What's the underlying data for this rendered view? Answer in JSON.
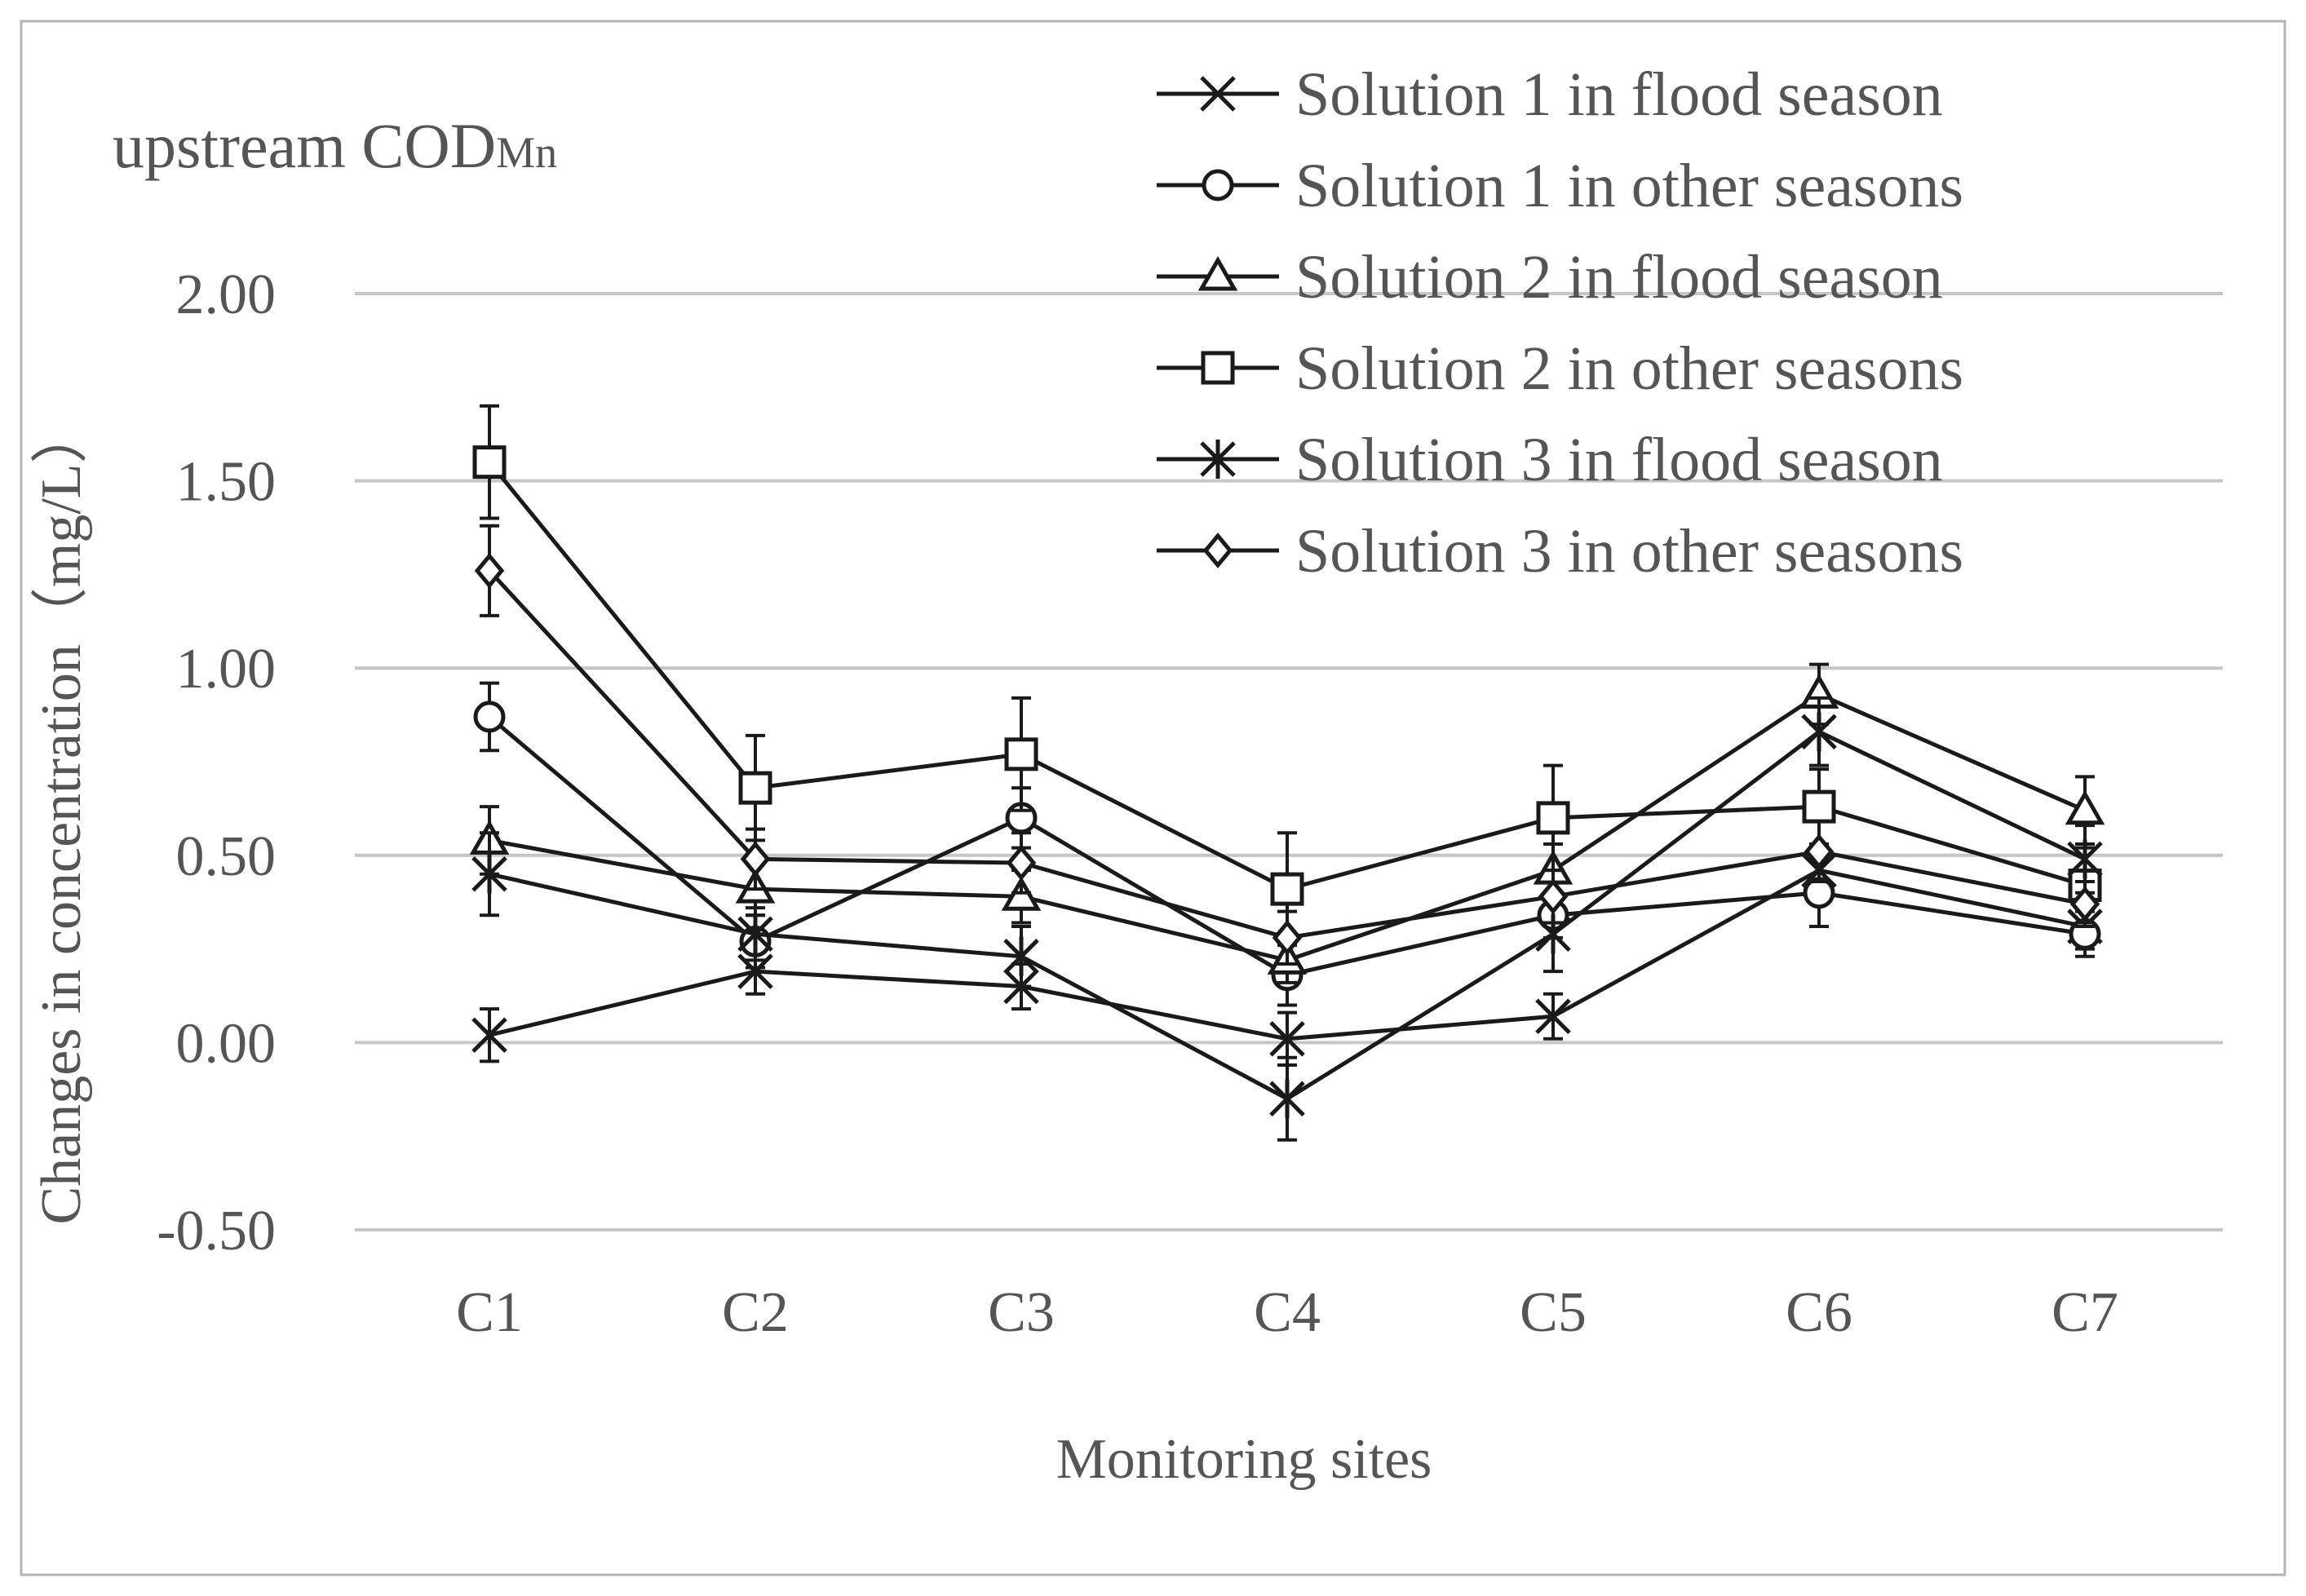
{
  "chart_data": {
    "type": "line",
    "title": "upstream COD",
    "title_subscript": "Mn",
    "xlabel": "Monitoring sites",
    "ylabel": "Changes in concentration（mg/L）",
    "categories": [
      "C1",
      "C2",
      "C3",
      "C4",
      "C5",
      "C6",
      "C7"
    ],
    "ylim": [
      -0.5,
      2.0
    ],
    "yticks": [
      -0.5,
      0.0,
      0.5,
      1.0,
      1.5,
      2.0
    ],
    "ytick_labels": [
      "-0.50",
      "0.00",
      "0.50",
      "1.00",
      "1.50",
      "2.00"
    ],
    "grid": true,
    "legend_position": "top-right",
    "series": [
      {
        "name": "Solution 1 in flood season",
        "marker": "x",
        "values": [
          0.02,
          0.19,
          0.15,
          0.01,
          0.07,
          0.46,
          0.31
        ],
        "errors": [
          0.07,
          0.06,
          0.06,
          0.07,
          0.06,
          0.06,
          0.06
        ]
      },
      {
        "name": "Solution 1 in other seasons",
        "marker": "circle",
        "values": [
          0.87,
          0.27,
          0.6,
          0.18,
          0.34,
          0.4,
          0.29
        ],
        "errors": [
          0.09,
          0.07,
          0.08,
          0.08,
          0.06,
          0.09,
          0.06
        ]
      },
      {
        "name": "Solution 2 in flood season",
        "marker": "triangle",
        "values": [
          0.54,
          0.41,
          0.39,
          0.22,
          0.46,
          0.93,
          0.62
        ],
        "errors": [
          0.09,
          0.07,
          0.07,
          0.06,
          0.07,
          0.08,
          0.09
        ]
      },
      {
        "name": "Solution 2 in other seasons",
        "marker": "square",
        "values": [
          1.55,
          0.68,
          0.77,
          0.41,
          0.6,
          0.63,
          0.42
        ],
        "errors": [
          0.15,
          0.14,
          0.15,
          0.15,
          0.14,
          0.1,
          0.1
        ]
      },
      {
        "name": "Solution 3 in flood season",
        "marker": "asterisk",
        "values": [
          0.45,
          0.29,
          0.23,
          -0.15,
          0.29,
          0.83,
          0.49
        ],
        "errors": [
          0.11,
          0.07,
          0.08,
          0.11,
          0.1,
          0.09,
          0.09
        ]
      },
      {
        "name": "Solution 3 in other seasons",
        "marker": "diamond",
        "values": [
          1.26,
          0.49,
          0.48,
          0.28,
          0.39,
          0.51,
          0.37
        ],
        "errors": [
          0.12,
          0.08,
          0.08,
          0.07,
          0.07,
          0.08,
          0.06
        ]
      }
    ]
  }
}
